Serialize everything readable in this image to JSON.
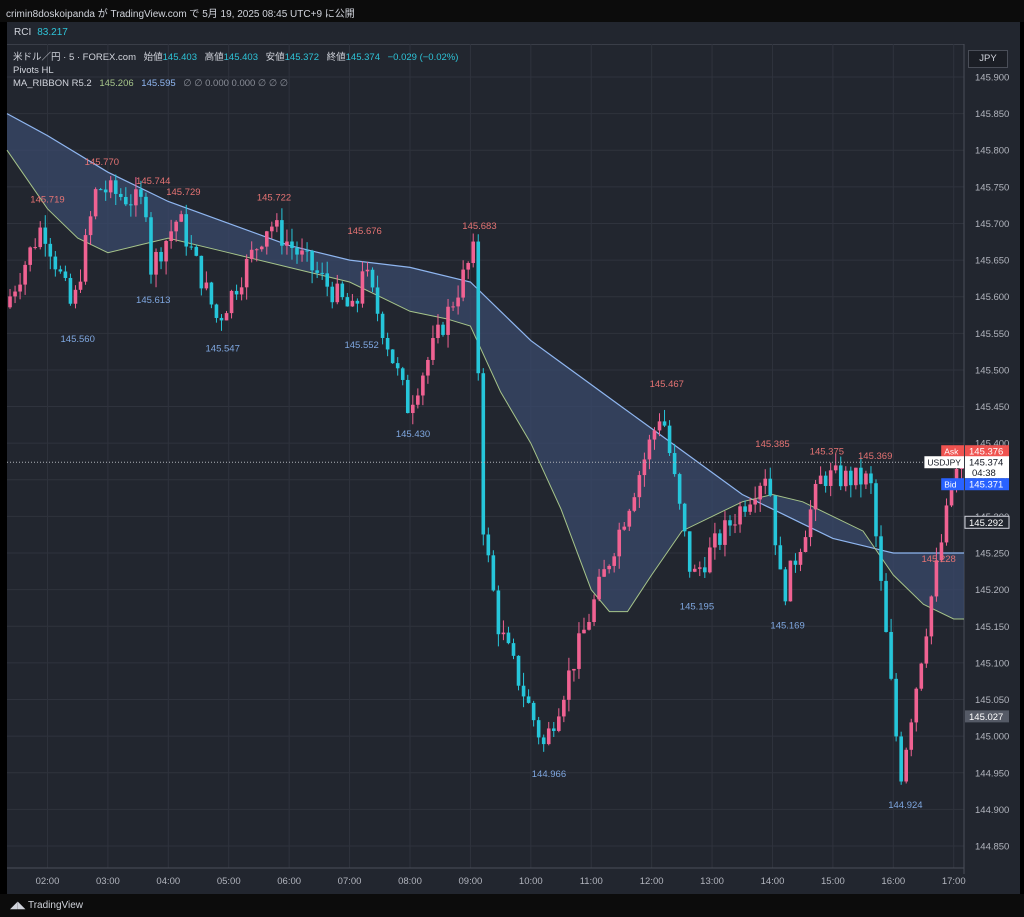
{
  "header": {
    "title": "crimin8doskoipanda が TradingView.com で 5月 19, 2025 08:45 UTC+9 に公開"
  },
  "indicator": {
    "name": "RCI",
    "value": "83.217"
  },
  "legend": {
    "symbol": "米ドル／円 · 5 · FOREX.com",
    "open_label": "始値",
    "open": "145.403",
    "high_label": "高値",
    "high": "145.403",
    "low_label": "安値",
    "low": "145.372",
    "close_label": "終値",
    "close": "145.374",
    "change": "−0.029 (−0.02%)",
    "pivots": "Pivots HL",
    "ribbon_name": "MA_RIBBON R5.2",
    "ribbon_v1": "145.206",
    "ribbon_v2": "145.595",
    "ribbon_rest": "∅ ∅ 0.000 0.000 ∅ ∅ ∅"
  },
  "currency": "JPY",
  "footer": {
    "brand": "TradingView"
  },
  "colors": {
    "up": "#f06292",
    "down": "#26c6da",
    "ribbon_fast": "#a6c48a",
    "ribbon_slow": "#8fb6f0",
    "fill": "#3a4a6b",
    "high_label": "#e57373",
    "low_label": "#7fa7e0"
  },
  "chart_data": {
    "type": "candlestick",
    "x_ticks": [
      "02:00",
      "03:00",
      "04:00",
      "05:00",
      "06:00",
      "07:00",
      "08:00",
      "09:00",
      "10:00",
      "11:00",
      "12:00",
      "13:00",
      "14:00",
      "15:00",
      "16:00",
      "17:00"
    ],
    "y_ticks": [
      "145.900",
      "145.850",
      "145.800",
      "145.750",
      "145.700",
      "145.650",
      "145.600",
      "145.550",
      "145.500",
      "145.450",
      "145.400",
      "145.350",
      "145.300",
      "145.250",
      "145.200",
      "145.150",
      "145.100",
      "145.050",
      "145.000",
      "144.950",
      "144.900",
      "144.850"
    ],
    "ylim": [
      144.82,
      145.945
    ],
    "x_hours": [
      1.33,
      17.17
    ],
    "pivot_highs": [
      {
        "t": 2.0,
        "price": "145.719"
      },
      {
        "t": 2.9,
        "price": "145.770"
      },
      {
        "t": 3.75,
        "price": "145.744"
      },
      {
        "t": 4.25,
        "price": "145.729"
      },
      {
        "t": 5.75,
        "price": "145.722"
      },
      {
        "t": 7.25,
        "price": "145.676"
      },
      {
        "t": 9.15,
        "price": "145.683"
      },
      {
        "t": 12.25,
        "price": "145.467"
      },
      {
        "t": 14.0,
        "price": "145.385"
      },
      {
        "t": 14.9,
        "price": "145.375"
      },
      {
        "t": 15.7,
        "price": "145.369"
      },
      {
        "t": 16.75,
        "price": "145.228"
      }
    ],
    "pivot_lows": [
      {
        "t": 1.35,
        "price": "538"
      },
      {
        "t": 2.5,
        "price": "145.560"
      },
      {
        "t": 3.75,
        "price": "145.613"
      },
      {
        "t": 4.9,
        "price": "145.547"
      },
      {
        "t": 7.2,
        "price": "145.552"
      },
      {
        "t": 8.05,
        "price": "145.430"
      },
      {
        "t": 10.3,
        "price": "144.966"
      },
      {
        "t": 12.75,
        "price": "145.195"
      },
      {
        "t": 14.25,
        "price": "145.169"
      },
      {
        "t": 16.2,
        "price": "144.924"
      }
    ],
    "ma_fast": [
      [
        1.33,
        145.8
      ],
      [
        2.0,
        145.72
      ],
      [
        2.5,
        145.68
      ],
      [
        3.0,
        145.66
      ],
      [
        3.5,
        145.67
      ],
      [
        4.0,
        145.68
      ],
      [
        5.0,
        145.66
      ],
      [
        6.0,
        145.64
      ],
      [
        7.0,
        145.62
      ],
      [
        8.0,
        145.58
      ],
      [
        8.6,
        145.57
      ],
      [
        9.0,
        145.56
      ],
      [
        9.5,
        145.47
      ],
      [
        10.0,
        145.4
      ],
      [
        10.5,
        145.31
      ],
      [
        11.0,
        145.2
      ],
      [
        11.3,
        145.17
      ],
      [
        11.6,
        145.17
      ],
      [
        12.0,
        145.22
      ],
      [
        12.5,
        145.28
      ],
      [
        13.0,
        145.3
      ],
      [
        13.5,
        145.32
      ],
      [
        14.0,
        145.33
      ],
      [
        14.5,
        145.32
      ],
      [
        15.0,
        145.3
      ],
      [
        15.5,
        145.28
      ],
      [
        16.0,
        145.22
      ],
      [
        16.5,
        145.18
      ],
      [
        17.0,
        145.16
      ],
      [
        17.17,
        145.16
      ]
    ],
    "ma_slow": [
      [
        1.33,
        145.85
      ],
      [
        2.0,
        145.82
      ],
      [
        3.0,
        145.77
      ],
      [
        4.0,
        145.73
      ],
      [
        5.0,
        145.7
      ],
      [
        6.0,
        145.67
      ],
      [
        7.0,
        145.65
      ],
      [
        8.0,
        145.64
      ],
      [
        9.0,
        145.62
      ],
      [
        9.5,
        145.58
      ],
      [
        10.0,
        145.54
      ],
      [
        10.5,
        145.51
      ],
      [
        11.0,
        145.48
      ],
      [
        11.5,
        145.45
      ],
      [
        12.0,
        145.42
      ],
      [
        12.5,
        145.39
      ],
      [
        13.0,
        145.36
      ],
      [
        13.5,
        145.33
      ],
      [
        14.0,
        145.31
      ],
      [
        14.5,
        145.29
      ],
      [
        15.0,
        145.27
      ],
      [
        15.5,
        145.26
      ],
      [
        16.0,
        145.25
      ],
      [
        16.5,
        145.25
      ],
      [
        17.0,
        145.25
      ],
      [
        17.17,
        145.25
      ]
    ],
    "last_price": "145.374",
    "price_tags": [
      {
        "label": "Ask",
        "price": "145.376",
        "color": "#ef5350"
      },
      {
        "label": "USDJPY",
        "price": "145.374",
        "time": "04:38",
        "color": "#ffffff"
      },
      {
        "label": "Bid",
        "price": "145.371",
        "color": "#2962ff"
      },
      {
        "label": "",
        "price": "145.292",
        "color": "#22262f"
      },
      {
        "label": "",
        "price": "145.027",
        "color": "#555a66"
      }
    ]
  }
}
